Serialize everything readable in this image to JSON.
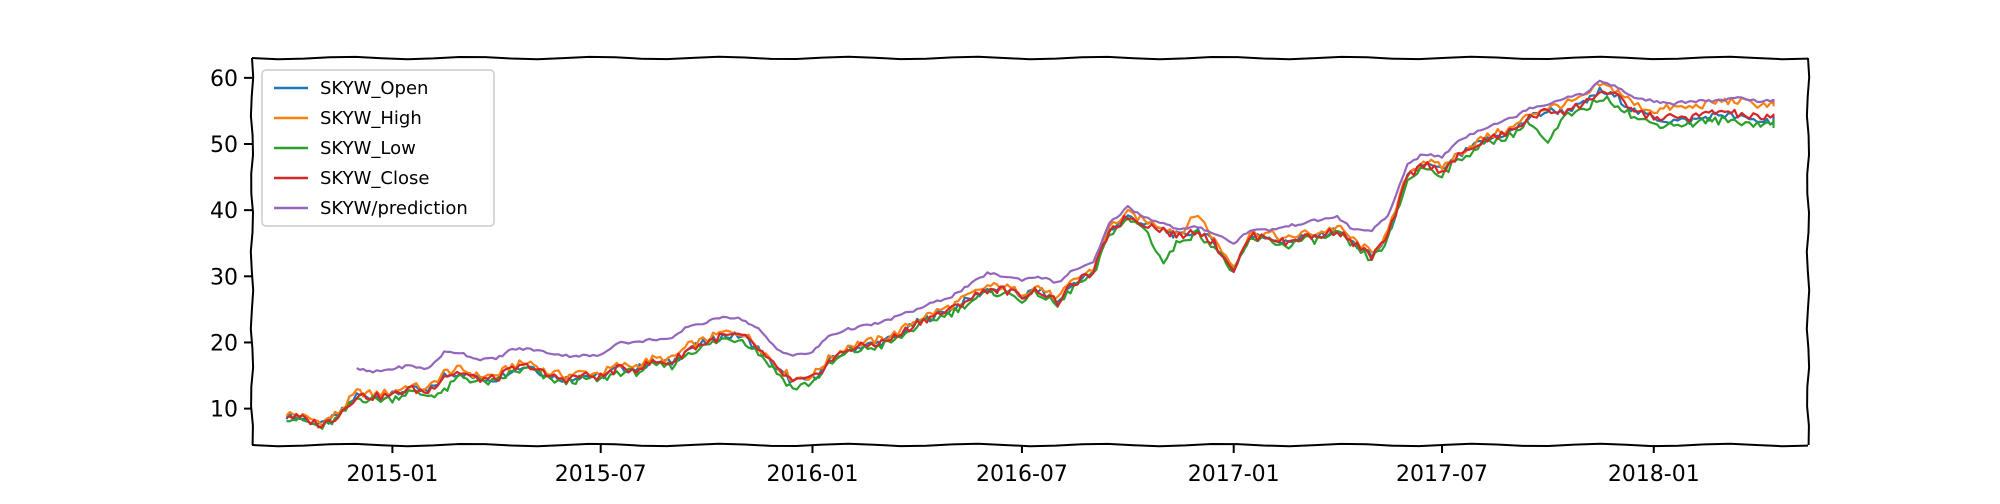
{
  "chart_data": {
    "type": "line",
    "title": "",
    "xlabel": "",
    "ylabel": "",
    "xlim": [
      "2014-09-01",
      "2018-05-15"
    ],
    "ylim": [
      4.5,
      63
    ],
    "x_ticks": [
      "2015-01",
      "2015-07",
      "2016-01",
      "2016-07",
      "2017-01",
      "2017-07",
      "2018-01"
    ],
    "y_ticks": [
      10,
      20,
      30,
      40,
      50,
      60
    ],
    "grid": false,
    "legend_position": "top-left",
    "x": [
      "2014-10-01",
      "2014-10-15",
      "2014-11-01",
      "2014-11-15",
      "2014-12-01",
      "2014-12-15",
      "2015-01-01",
      "2015-01-15",
      "2015-02-01",
      "2015-02-15",
      "2015-03-01",
      "2015-03-15",
      "2015-04-01",
      "2015-04-15",
      "2015-05-01",
      "2015-05-15",
      "2015-06-01",
      "2015-06-15",
      "2015-07-01",
      "2015-07-15",
      "2015-08-01",
      "2015-08-15",
      "2015-09-01",
      "2015-09-15",
      "2015-10-01",
      "2015-10-15",
      "2015-11-01",
      "2015-11-15",
      "2015-12-01",
      "2015-12-15",
      "2016-01-01",
      "2016-01-15",
      "2016-02-01",
      "2016-02-15",
      "2016-03-01",
      "2016-03-15",
      "2016-04-01",
      "2016-04-15",
      "2016-05-01",
      "2016-05-15",
      "2016-06-01",
      "2016-06-15",
      "2016-07-01",
      "2016-07-15",
      "2016-08-01",
      "2016-08-15",
      "2016-09-01",
      "2016-09-15",
      "2016-10-01",
      "2016-10-15",
      "2016-11-01",
      "2016-11-15",
      "2016-12-01",
      "2016-12-15",
      "2017-01-01",
      "2017-01-15",
      "2017-02-01",
      "2017-02-15",
      "2017-03-01",
      "2017-03-15",
      "2017-04-01",
      "2017-04-15",
      "2017-05-01",
      "2017-05-15",
      "2017-06-01",
      "2017-06-15",
      "2017-07-01",
      "2017-07-15",
      "2017-08-01",
      "2017-08-15",
      "2017-09-01",
      "2017-09-15",
      "2017-10-01",
      "2017-10-15",
      "2017-11-01",
      "2017-11-15",
      "2017-12-01",
      "2017-12-15",
      "2018-01-01",
      "2018-01-15",
      "2018-02-01",
      "2018-02-15",
      "2018-03-01",
      "2018-03-15",
      "2018-04-01",
      "2018-04-15"
    ],
    "series": [
      {
        "name": "SKYW_Open",
        "color": "#1f77b4",
        "values": [
          9.0,
          8.5,
          7.5,
          9.0,
          12.0,
          11.8,
          12.0,
          13.0,
          12.5,
          15.0,
          15.5,
          14.5,
          14.5,
          16.0,
          16.5,
          15.0,
          14.5,
          15.0,
          14.8,
          16.0,
          16.0,
          17.0,
          17.0,
          19.0,
          20.0,
          21.0,
          21.0,
          19.0,
          16.0,
          14.0,
          14.5,
          17.0,
          19.0,
          19.5,
          20.0,
          21.0,
          23.0,
          24.0,
          25.0,
          26.5,
          28.0,
          28.0,
          27.0,
          28.0,
          26.0,
          29.0,
          30.5,
          37.0,
          39.0,
          38.0,
          37.0,
          36.0,
          37.0,
          35.0,
          31.0,
          36.0,
          36.0,
          35.0,
          36.0,
          36.0,
          37.0,
          35.0,
          33.0,
          36.0,
          45.0,
          47.0,
          46.0,
          48.0,
          50.0,
          51.0,
          52.0,
          54.0,
          55.0,
          55.0,
          56.0,
          58.0,
          57.0,
          55.0,
          54.0,
          53.5,
          53.5,
          54.0,
          54.5,
          54.0,
          53.5,
          53.5
        ]
      },
      {
        "name": "SKYW_High",
        "color": "#ff7f0e",
        "values": [
          9.3,
          8.8,
          7.9,
          9.4,
          12.5,
          12.2,
          12.5,
          13.5,
          13.0,
          15.5,
          16.0,
          15.0,
          15.0,
          16.5,
          17.0,
          15.5,
          15.0,
          15.5,
          15.3,
          16.5,
          16.5,
          17.5,
          17.5,
          19.5,
          20.5,
          21.5,
          21.5,
          19.5,
          16.5,
          14.5,
          15.0,
          17.5,
          19.5,
          20.0,
          20.5,
          21.5,
          23.5,
          24.5,
          25.5,
          27.0,
          28.5,
          28.5,
          27.5,
          28.5,
          26.5,
          29.5,
          31.0,
          37.5,
          39.5,
          38.5,
          37.5,
          36.5,
          39.5,
          35.5,
          31.5,
          36.5,
          36.5,
          35.5,
          36.5,
          36.5,
          37.5,
          35.5,
          33.5,
          36.5,
          45.5,
          47.5,
          46.5,
          48.5,
          50.5,
          51.5,
          52.5,
          54.5,
          55.5,
          56.0,
          57.0,
          59.0,
          58.0,
          56.0,
          55.0,
          55.5,
          55.5,
          56.0,
          56.5,
          56.5,
          56.0,
          56.0
        ]
      },
      {
        "name": "SKYW_Low",
        "color": "#2ca02c",
        "values": [
          8.7,
          8.2,
          7.1,
          8.6,
          11.5,
          11.4,
          11.5,
          12.5,
          12.0,
          12.5,
          15.0,
          14.0,
          14.0,
          15.5,
          16.0,
          14.5,
          14.0,
          14.5,
          14.3,
          15.5,
          15.5,
          16.5,
          16.5,
          18.5,
          19.5,
          20.5,
          20.5,
          18.5,
          15.5,
          13.0,
          14.0,
          16.5,
          18.5,
          19.0,
          19.5,
          20.5,
          22.5,
          23.5,
          24.5,
          26.0,
          27.5,
          27.5,
          26.5,
          27.5,
          25.5,
          28.5,
          30.0,
          36.5,
          38.5,
          37.5,
          32.0,
          35.5,
          36.5,
          34.5,
          30.5,
          35.5,
          35.5,
          34.5,
          35.5,
          35.5,
          36.5,
          34.5,
          32.5,
          35.5,
          44.5,
          46.5,
          45.5,
          47.5,
          49.5,
          50.5,
          51.5,
          53.5,
          50.0,
          54.0,
          55.0,
          57.0,
          56.0,
          54.0,
          53.0,
          53.0,
          53.0,
          53.5,
          53.5,
          53.5,
          53.0,
          53.0
        ]
      },
      {
        "name": "SKYW_Close",
        "color": "#d62728",
        "values": [
          9.0,
          8.5,
          7.5,
          9.0,
          12.0,
          11.8,
          12.0,
          13.0,
          12.5,
          15.0,
          15.5,
          14.5,
          14.5,
          16.0,
          16.5,
          15.0,
          14.5,
          15.0,
          14.8,
          16.0,
          16.0,
          17.0,
          17.0,
          19.0,
          20.0,
          21.0,
          21.0,
          19.0,
          16.0,
          14.0,
          14.5,
          17.0,
          19.0,
          19.5,
          20.0,
          21.0,
          23.0,
          24.0,
          25.0,
          26.5,
          28.0,
          28.0,
          27.0,
          28.0,
          26.0,
          29.0,
          30.5,
          37.0,
          39.0,
          38.0,
          37.0,
          36.0,
          37.0,
          35.0,
          31.0,
          36.0,
          36.0,
          35.0,
          36.0,
          36.0,
          37.0,
          35.0,
          33.0,
          36.0,
          45.0,
          47.0,
          46.0,
          48.0,
          50.0,
          51.0,
          52.0,
          54.0,
          55.0,
          55.0,
          56.0,
          58.0,
          57.0,
          55.0,
          54.0,
          54.0,
          54.0,
          54.5,
          55.0,
          54.5,
          54.0,
          54.0
        ]
      },
      {
        "name": "SKYW/prediction",
        "color": "#9467bd",
        "values": [
          null,
          null,
          null,
          null,
          16.0,
          15.5,
          16.0,
          16.5,
          16.0,
          18.5,
          18.5,
          17.5,
          17.5,
          19.0,
          19.0,
          18.5,
          18.0,
          18.0,
          18.0,
          20.0,
          20.0,
          20.5,
          20.5,
          22.5,
          23.0,
          24.0,
          23.5,
          22.0,
          19.0,
          18.0,
          18.5,
          21.0,
          22.0,
          22.5,
          23.0,
          24.0,
          25.0,
          26.0,
          27.0,
          28.5,
          30.5,
          30.0,
          29.5,
          30.0,
          29.0,
          31.0,
          32.0,
          38.0,
          40.5,
          39.0,
          38.0,
          37.0,
          37.5,
          36.5,
          35.0,
          37.0,
          37.0,
          37.5,
          38.0,
          38.5,
          39.0,
          37.0,
          37.0,
          39.0,
          47.0,
          48.5,
          48.0,
          50.5,
          52.0,
          53.0,
          54.0,
          55.5,
          56.0,
          57.0,
          57.5,
          59.5,
          58.5,
          57.0,
          56.5,
          56.0,
          56.5,
          56.5,
          56.5,
          57.0,
          56.5,
          56.5
        ]
      }
    ]
  }
}
